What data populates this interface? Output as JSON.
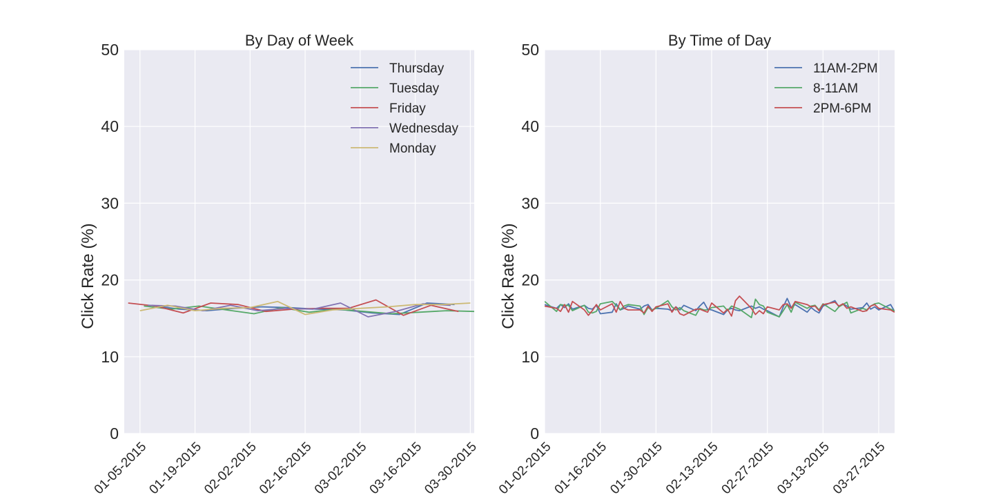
{
  "chart_data": [
    {
      "type": "line",
      "title": "By Day of Week",
      "ylabel": "Click Rate (%)",
      "xlabel": "",
      "ylim": [
        0,
        50
      ],
      "yticks": [
        0,
        10,
        20,
        30,
        40,
        50
      ],
      "xrange": [
        "2015-01-01",
        "2015-03-31"
      ],
      "xticks": [
        "2015-01-05",
        "2015-01-19",
        "2015-02-02",
        "2015-02-16",
        "2015-03-02",
        "2015-03-16",
        "2015-03-30"
      ],
      "xtick_labels": [
        "01-05-2015",
        "01-19-2015",
        "02-02-2015",
        "02-16-2015",
        "03-02-2015",
        "03-16-2015",
        "03-30-2015"
      ],
      "grid": true,
      "legend_position": "top-right",
      "series": [
        {
          "name": "Thursday",
          "color": "#4C72B0",
          "x": [
            "2015-01-08",
            "2015-01-15",
            "2015-01-22",
            "2015-01-29",
            "2015-02-05",
            "2015-02-12",
            "2015-02-19",
            "2015-02-26",
            "2015-03-05",
            "2015-03-12",
            "2015-03-19",
            "2015-03-26"
          ],
          "y": [
            16.7,
            16.2,
            16.0,
            16.3,
            16.5,
            16.4,
            16.2,
            16.1,
            15.7,
            15.5,
            17.0,
            16.8
          ]
        },
        {
          "name": "Tuesday",
          "color": "#55A868",
          "x": [
            "2015-01-06",
            "2015-01-13",
            "2015-01-20",
            "2015-01-27",
            "2015-02-03",
            "2015-02-10",
            "2015-02-17",
            "2015-02-24",
            "2015-03-03",
            "2015-03-10",
            "2015-03-17",
            "2015-03-24",
            "2015-03-31"
          ],
          "y": [
            16.6,
            16.2,
            16.6,
            16.1,
            15.6,
            16.4,
            15.8,
            16.2,
            15.9,
            15.6,
            15.8,
            16.0,
            15.9
          ]
        },
        {
          "name": "Friday",
          "color": "#C44E52",
          "x": [
            "2015-01-02",
            "2015-01-09",
            "2015-01-16",
            "2015-01-23",
            "2015-01-30",
            "2015-02-06",
            "2015-02-13",
            "2015-02-20",
            "2015-02-27",
            "2015-03-06",
            "2015-03-13",
            "2015-03-20",
            "2015-03-27"
          ],
          "y": [
            17.0,
            16.6,
            15.7,
            17.0,
            16.8,
            15.9,
            16.2,
            16.3,
            16.3,
            17.4,
            15.4,
            16.7,
            15.9
          ]
        },
        {
          "name": "Wednesday",
          "color": "#8172B2",
          "x": [
            "2015-01-07",
            "2015-01-14",
            "2015-01-21",
            "2015-01-28",
            "2015-02-04",
            "2015-02-11",
            "2015-02-18",
            "2015-02-25",
            "2015-03-04",
            "2015-03-11",
            "2015-03-18",
            "2015-03-25"
          ],
          "y": [
            16.7,
            16.6,
            16.0,
            16.7,
            16.0,
            16.3,
            16.2,
            17.0,
            15.2,
            15.9,
            16.9,
            16.7
          ]
        },
        {
          "name": "Monday",
          "color": "#CCB974",
          "x": [
            "2015-01-05",
            "2015-01-12",
            "2015-01-19",
            "2015-01-26",
            "2015-02-02",
            "2015-02-09",
            "2015-02-16",
            "2015-02-23",
            "2015-03-02",
            "2015-03-09",
            "2015-03-16",
            "2015-03-23",
            "2015-03-30"
          ],
          "y": [
            16.0,
            16.7,
            16.0,
            16.3,
            16.4,
            17.2,
            15.5,
            16.1,
            16.3,
            16.5,
            16.8,
            16.8,
            17.0
          ]
        }
      ]
    },
    {
      "type": "line",
      "title": "By Time of Day",
      "ylabel": "Click Rate (%)",
      "xlabel": "",
      "ylim": [
        0,
        50
      ],
      "yticks": [
        0,
        10,
        20,
        30,
        40,
        50
      ],
      "xrange": [
        "2015-01-02",
        "2015-03-31"
      ],
      "xticks": [
        "2015-01-02",
        "2015-01-16",
        "2015-01-30",
        "2015-02-13",
        "2015-02-27",
        "2015-03-13",
        "2015-03-27"
      ],
      "xtick_labels": [
        "01-02-2015",
        "01-16-2015",
        "01-30-2015",
        "02-13-2015",
        "02-27-2015",
        "03-13-2015",
        "03-27-2015"
      ],
      "grid": true,
      "legend_position": "top-right",
      "series": [
        {
          "name": "11AM-2PM",
          "color": "#4C72B0",
          "x": [
            "2015-01-02",
            "2015-01-05",
            "2015-01-06",
            "2015-01-07",
            "2015-01-08",
            "2015-01-09",
            "2015-01-12",
            "2015-01-13",
            "2015-01-14",
            "2015-01-15",
            "2015-01-16",
            "2015-01-19",
            "2015-01-20",
            "2015-01-21",
            "2015-01-22",
            "2015-01-23",
            "2015-01-26",
            "2015-01-27",
            "2015-01-28",
            "2015-01-29",
            "2015-01-30",
            "2015-02-02",
            "2015-02-03",
            "2015-02-04",
            "2015-02-05",
            "2015-02-06",
            "2015-02-09",
            "2015-02-10",
            "2015-02-11",
            "2015-02-12",
            "2015-02-13",
            "2015-02-16",
            "2015-02-17",
            "2015-02-18",
            "2015-02-19",
            "2015-02-20",
            "2015-02-23",
            "2015-02-24",
            "2015-02-25",
            "2015-02-26",
            "2015-02-27",
            "2015-03-02",
            "2015-03-03",
            "2015-03-04",
            "2015-03-05",
            "2015-03-06",
            "2015-03-09",
            "2015-03-10",
            "2015-03-11",
            "2015-03-12",
            "2015-03-13",
            "2015-03-16",
            "2015-03-17",
            "2015-03-18",
            "2015-03-19",
            "2015-03-20",
            "2015-03-23",
            "2015-03-24",
            "2015-03-25",
            "2015-03-26",
            "2015-03-27",
            "2015-03-30",
            "2015-03-31"
          ],
          "y": [
            16.8,
            16.3,
            16.8,
            16.4,
            16.9,
            16.2,
            16.7,
            16.3,
            16.2,
            16.7,
            15.6,
            15.8,
            16.9,
            16.1,
            16.3,
            16.6,
            16.2,
            16.6,
            16.8,
            16.1,
            16.3,
            16.2,
            16.0,
            16.5,
            16.1,
            16.7,
            16.0,
            16.6,
            17.1,
            16.2,
            16.1,
            15.5,
            16.1,
            16.3,
            16.1,
            16.0,
            16.6,
            16.3,
            16.5,
            16.2,
            16.0,
            15.2,
            16.5,
            17.6,
            16.4,
            16.8,
            15.8,
            16.4,
            16.0,
            15.7,
            16.6,
            17.3,
            16.5,
            16.9,
            16.6,
            16.2,
            16.4,
            17.0,
            16.2,
            16.5,
            16.1,
            16.8,
            15.9
          ]
        },
        {
          "name": "8-11AM",
          "color": "#55A868",
          "x": [
            "2015-01-02",
            "2015-01-05",
            "2015-01-06",
            "2015-01-07",
            "2015-01-08",
            "2015-01-09",
            "2015-01-12",
            "2015-01-13",
            "2015-01-14",
            "2015-01-15",
            "2015-01-16",
            "2015-01-19",
            "2015-01-20",
            "2015-01-21",
            "2015-01-22",
            "2015-01-23",
            "2015-01-26",
            "2015-01-27",
            "2015-01-28",
            "2015-01-29",
            "2015-01-30",
            "2015-02-02",
            "2015-02-03",
            "2015-02-04",
            "2015-02-05",
            "2015-02-06",
            "2015-02-09",
            "2015-02-10",
            "2015-02-11",
            "2015-02-12",
            "2015-02-13",
            "2015-02-16",
            "2015-02-17",
            "2015-02-18",
            "2015-02-19",
            "2015-02-20",
            "2015-02-23",
            "2015-02-24",
            "2015-02-25",
            "2015-02-26",
            "2015-02-27",
            "2015-03-02",
            "2015-03-03",
            "2015-03-04",
            "2015-03-05",
            "2015-03-06",
            "2015-03-09",
            "2015-03-10",
            "2015-03-11",
            "2015-03-12",
            "2015-03-13",
            "2015-03-16",
            "2015-03-17",
            "2015-03-18",
            "2015-03-19",
            "2015-03-20",
            "2015-03-23",
            "2015-03-24",
            "2015-03-25",
            "2015-03-26",
            "2015-03-27",
            "2015-03-30",
            "2015-03-31"
          ],
          "y": [
            17.2,
            15.9,
            16.8,
            16.7,
            16.7,
            16.0,
            16.7,
            15.8,
            15.7,
            15.9,
            16.9,
            17.2,
            16.7,
            16.1,
            16.6,
            16.8,
            16.6,
            15.5,
            16.4,
            16.1,
            16.3,
            17.3,
            16.5,
            16.1,
            16.4,
            16.0,
            15.4,
            16.3,
            16.1,
            16.1,
            16.4,
            16.6,
            16.0,
            16.6,
            16.4,
            16.2,
            15.1,
            17.5,
            16.8,
            16.6,
            15.8,
            15.2,
            16.0,
            16.8,
            15.8,
            17.1,
            16.3,
            16.6,
            16.7,
            16.1,
            16.9,
            15.9,
            16.5,
            16.8,
            17.1,
            15.7,
            16.3,
            16.1,
            16.6,
            16.9,
            17.0,
            16.2,
            16.0
          ]
        },
        {
          "name": "2PM-6PM",
          "color": "#C44E52",
          "x": [
            "2015-01-02",
            "2015-01-05",
            "2015-01-06",
            "2015-01-07",
            "2015-01-08",
            "2015-01-09",
            "2015-01-12",
            "2015-01-13",
            "2015-01-14",
            "2015-01-15",
            "2015-01-16",
            "2015-01-19",
            "2015-01-20",
            "2015-01-21",
            "2015-01-22",
            "2015-01-23",
            "2015-01-26",
            "2015-01-27",
            "2015-01-28",
            "2015-01-29",
            "2015-01-30",
            "2015-02-02",
            "2015-02-03",
            "2015-02-04",
            "2015-02-05",
            "2015-02-06",
            "2015-02-09",
            "2015-02-10",
            "2015-02-11",
            "2015-02-12",
            "2015-02-13",
            "2015-02-16",
            "2015-02-17",
            "2015-02-18",
            "2015-02-19",
            "2015-02-20",
            "2015-02-23",
            "2015-02-24",
            "2015-02-25",
            "2015-02-26",
            "2015-02-27",
            "2015-03-02",
            "2015-03-03",
            "2015-03-04",
            "2015-03-05",
            "2015-03-06",
            "2015-03-09",
            "2015-03-10",
            "2015-03-11",
            "2015-03-12",
            "2015-03-13",
            "2015-03-16",
            "2015-03-17",
            "2015-03-18",
            "2015-03-19",
            "2015-03-20",
            "2015-03-23",
            "2015-03-24",
            "2015-03-25",
            "2015-03-26",
            "2015-03-27",
            "2015-03-30",
            "2015-03-31"
          ],
          "y": [
            16.6,
            16.3,
            15.9,
            16.8,
            15.8,
            17.2,
            16.1,
            15.4,
            16.0,
            16.8,
            16.1,
            16.9,
            15.8,
            17.2,
            16.3,
            16.1,
            16.1,
            15.7,
            16.6,
            15.9,
            16.5,
            16.9,
            15.8,
            16.5,
            15.6,
            15.4,
            16.2,
            16.2,
            16.0,
            15.8,
            17.0,
            15.7,
            16.2,
            15.3,
            17.3,
            17.9,
            16.3,
            15.5,
            16.0,
            15.6,
            16.5,
            16.1,
            16.8,
            16.9,
            16.3,
            17.2,
            16.8,
            16.5,
            16.6,
            16.0,
            16.8,
            17.1,
            16.6,
            16.9,
            16.3,
            16.5,
            15.9,
            16.0,
            16.6,
            16.8,
            16.3,
            16.1,
            15.8
          ]
        }
      ]
    }
  ]
}
